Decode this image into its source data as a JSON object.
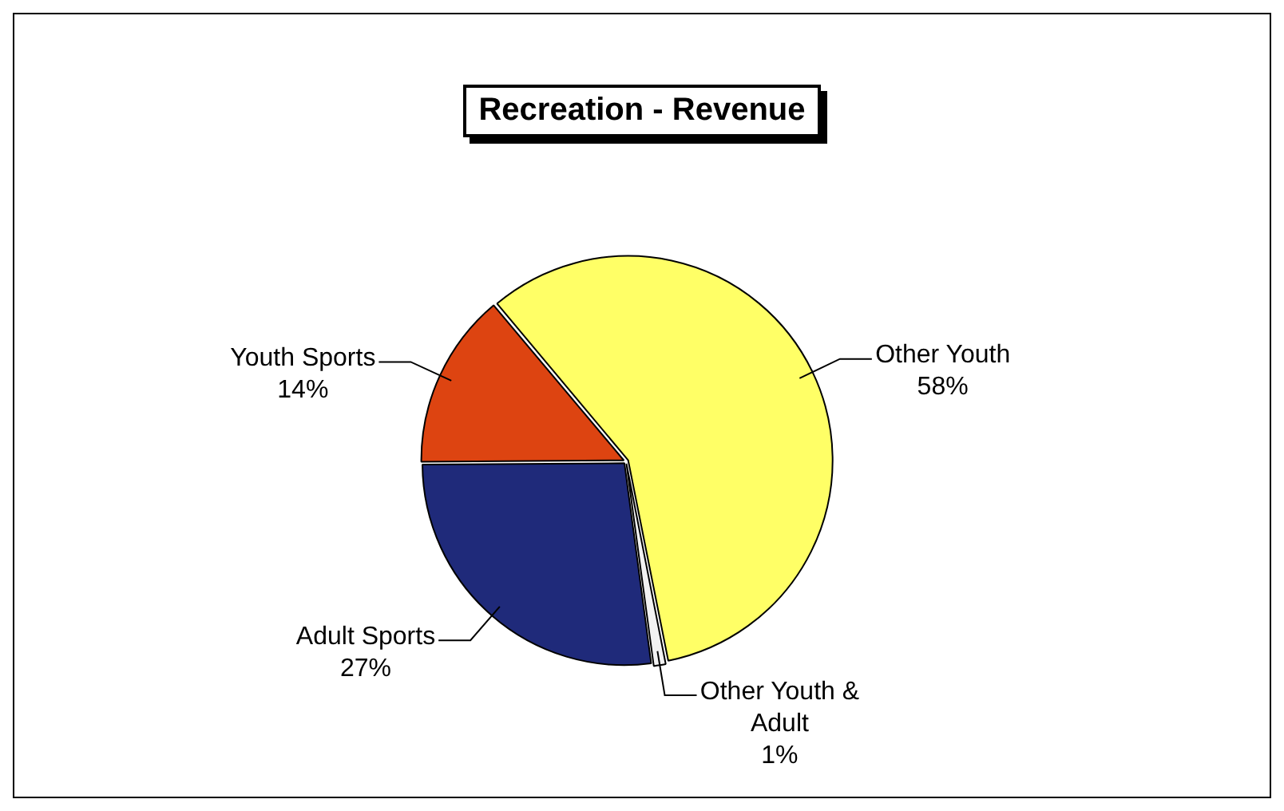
{
  "chart_data": {
    "type": "pie",
    "title": "Recreation - Revenue",
    "categories": [
      "Other Youth",
      "Other Youth & Adult",
      "Adult Sports",
      "Youth Sports"
    ],
    "values": [
      58,
      1,
      27,
      14
    ],
    "colors": [
      "#ffff66",
      "#f2f2f2",
      "#1f2a7a",
      "#dd4411"
    ],
    "value_labels": [
      "58%",
      "1%",
      "27%",
      "14%"
    ],
    "legend": false
  }
}
